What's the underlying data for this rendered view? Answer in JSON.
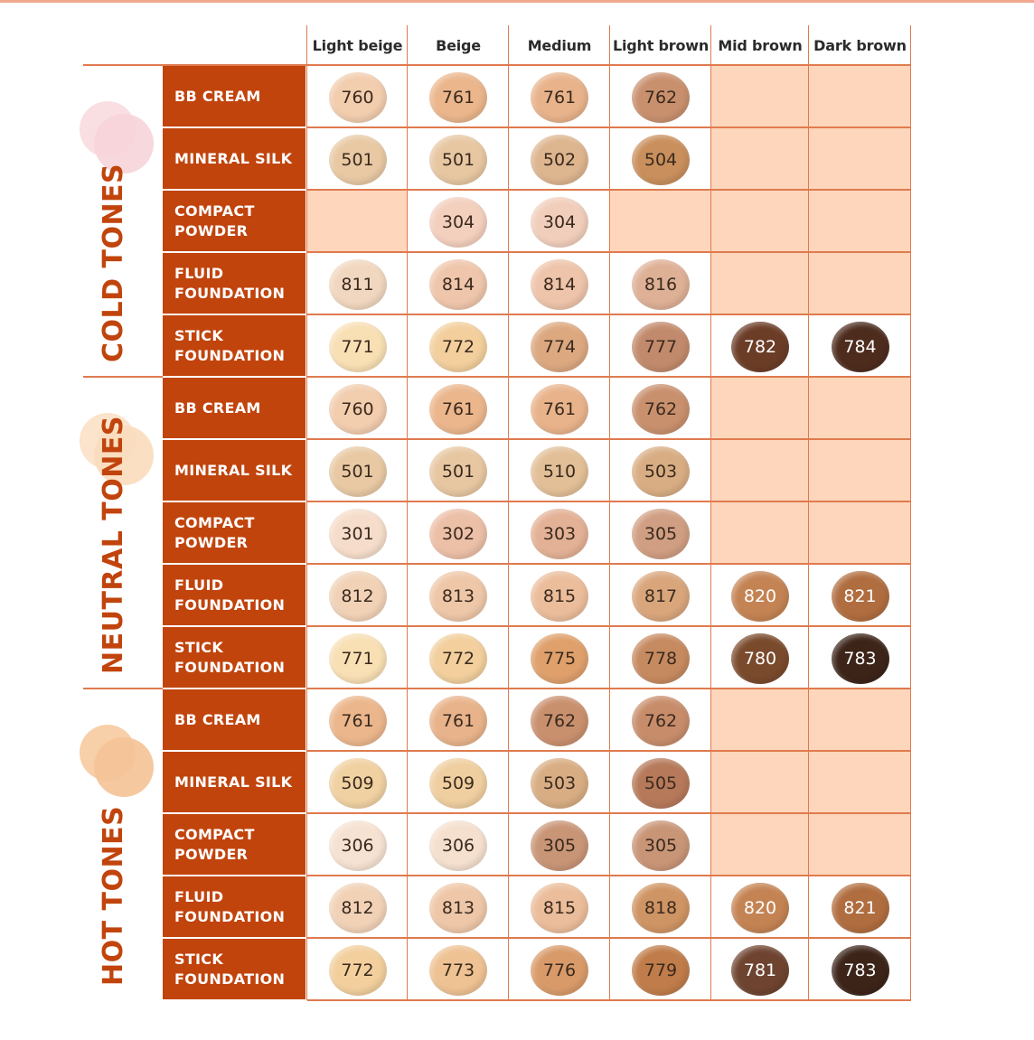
{
  "columns": [
    "Light beige",
    "Beige",
    "Medium",
    "Light brown",
    "Mid brown",
    "Dark brown"
  ],
  "colors": {
    "accent": "#c1440d",
    "line": "#e07a4e",
    "empty_cell": "#fdd6bb"
  },
  "groups": [
    {
      "label": "COLD TONES",
      "dot_colors": [
        "#f9dfe2",
        "#f6d4d9"
      ],
      "rows": [
        {
          "product": [
            "BB CREAM"
          ],
          "cells": [
            {
              "code": "760",
              "color": "#f2cdae"
            },
            {
              "code": "761",
              "color": "#ebb68c"
            },
            {
              "code": "761",
              "color": "#e8b38b"
            },
            {
              "code": "762",
              "color": "#c9906e"
            },
            null,
            null
          ]
        },
        {
          "product": [
            "MINERAL SILK"
          ],
          "cells": [
            {
              "code": "501",
              "color": "#e8c9a4"
            },
            {
              "code": "501",
              "color": "#e7c7a2"
            },
            {
              "code": "502",
              "color": "#ddb58f"
            },
            {
              "code": "504",
              "color": "#c98f5c"
            },
            null,
            null
          ]
        },
        {
          "product": [
            "COMPACT",
            "POWDER"
          ],
          "cells": [
            null,
            {
              "code": "304",
              "color": "#f3cfbd"
            },
            {
              "code": "304",
              "color": "#f1cebb"
            },
            null,
            null,
            null
          ]
        },
        {
          "product": [
            "FLUID",
            "FOUNDATION"
          ],
          "cells": [
            {
              "code": "811",
              "color": "#f1d7bf"
            },
            {
              "code": "814",
              "color": "#efc6ac"
            },
            {
              "code": "814",
              "color": "#eec4aa"
            },
            {
              "code": "816",
              "color": "#deb096"
            },
            null,
            null
          ]
        },
        {
          "product": [
            "STICK",
            "FOUNDATION"
          ],
          "cells": [
            {
              "code": "771",
              "color": "#f8dfb4"
            },
            {
              "code": "772",
              "color": "#f2cf9d"
            },
            {
              "code": "774",
              "color": "#dca880"
            },
            {
              "code": "777",
              "color": "#c28a6c"
            },
            {
              "code": "782",
              "color": "#6b3d27",
              "dark": true
            },
            {
              "code": "784",
              "color": "#4d2c1e",
              "dark": true
            }
          ]
        }
      ]
    },
    {
      "label": "NEUTRAL TONES",
      "dot_colors": [
        "#fbe3cc",
        "#f9dbbd"
      ],
      "rows": [
        {
          "product": [
            "BB CREAM"
          ],
          "cells": [
            {
              "code": "760",
              "color": "#f2cdae"
            },
            {
              "code": "761",
              "color": "#ebb68c"
            },
            {
              "code": "761",
              "color": "#e8b38b"
            },
            {
              "code": "762",
              "color": "#c9906e"
            },
            null,
            null
          ]
        },
        {
          "product": [
            "MINERAL SILK"
          ],
          "cells": [
            {
              "code": "501",
              "color": "#e8c9a4"
            },
            {
              "code": "501",
              "color": "#e7c7a2"
            },
            {
              "code": "510",
              "color": "#e2bf97"
            },
            {
              "code": "503",
              "color": "#d8ad83"
            },
            null,
            null
          ]
        },
        {
          "product": [
            "COMPACT",
            "POWDER"
          ],
          "cells": [
            {
              "code": "301",
              "color": "#f6ddcb"
            },
            {
              "code": "302",
              "color": "#ecbfa7"
            },
            {
              "code": "303",
              "color": "#e3b195"
            },
            {
              "code": "305",
              "color": "#d09e82"
            },
            null,
            null
          ]
        },
        {
          "product": [
            "FLUID",
            "FOUNDATION"
          ],
          "cells": [
            {
              "code": "812",
              "color": "#f1d2b7"
            },
            {
              "code": "813",
              "color": "#eec7a8"
            },
            {
              "code": "815",
              "color": "#ebbd9b"
            },
            {
              "code": "817",
              "color": "#d9a67c"
            },
            {
              "code": "820",
              "color": "#c48353",
              "dark": true
            },
            {
              "code": "821",
              "color": "#b06d3f",
              "dark": true
            }
          ]
        },
        {
          "product": [
            "STICK",
            "FOUNDATION"
          ],
          "cells": [
            {
              "code": "771",
              "color": "#f8dfb4"
            },
            {
              "code": "772",
              "color": "#f2cf9d"
            },
            {
              "code": "775",
              "color": "#dfa06c"
            },
            {
              "code": "778",
              "color": "#c68a60"
            },
            {
              "code": "780",
              "color": "#7a4a2c",
              "dark": true
            },
            {
              "code": "783",
              "color": "#3c2419",
              "dark": true
            }
          ]
        }
      ]
    },
    {
      "label": "HOT TONES",
      "dot_colors": [
        "#f7cfa8",
        "#f4c296"
      ],
      "rows": [
        {
          "product": [
            "BB CREAM"
          ],
          "cells": [
            {
              "code": "761",
              "color": "#ebb68c"
            },
            {
              "code": "761",
              "color": "#e8b38b"
            },
            {
              "code": "762",
              "color": "#c9906e"
            },
            {
              "code": "762",
              "color": "#c78d6b"
            },
            null,
            null
          ]
        },
        {
          "product": [
            "MINERAL SILK"
          ],
          "cells": [
            {
              "code": "509",
              "color": "#f0d1a2"
            },
            {
              "code": "509",
              "color": "#efcfa0"
            },
            {
              "code": "503",
              "color": "#d8ad83"
            },
            {
              "code": "505",
              "color": "#b6795a"
            },
            null,
            null
          ]
        },
        {
          "product": [
            "COMPACT",
            "POWDER"
          ],
          "cells": [
            {
              "code": "306",
              "color": "#f6e2d2"
            },
            {
              "code": "306",
              "color": "#f5e0cf"
            },
            {
              "code": "305",
              "color": "#c99577"
            },
            {
              "code": "305",
              "color": "#c99577"
            },
            null,
            null
          ]
        },
        {
          "product": [
            "FLUID",
            "FOUNDATION"
          ],
          "cells": [
            {
              "code": "812",
              "color": "#f1d2b7"
            },
            {
              "code": "813",
              "color": "#eec7a8"
            },
            {
              "code": "815",
              "color": "#ebbd9b"
            },
            {
              "code": "818",
              "color": "#cf9463"
            },
            {
              "code": "820",
              "color": "#c48353",
              "dark": true
            },
            {
              "code": "821",
              "color": "#b06d3f",
              "dark": true
            }
          ]
        },
        {
          "product": [
            "STICK",
            "FOUNDATION"
          ],
          "cells": [
            {
              "code": "772",
              "color": "#f2cf9d"
            },
            {
              "code": "773",
              "color": "#eec293"
            },
            {
              "code": "776",
              "color": "#d99a69"
            },
            {
              "code": "779",
              "color": "#c07c4a"
            },
            {
              "code": "781",
              "color": "#6e4430",
              "dark": true
            },
            {
              "code": "783",
              "color": "#3c2419",
              "dark": true
            }
          ]
        }
      ]
    }
  ]
}
